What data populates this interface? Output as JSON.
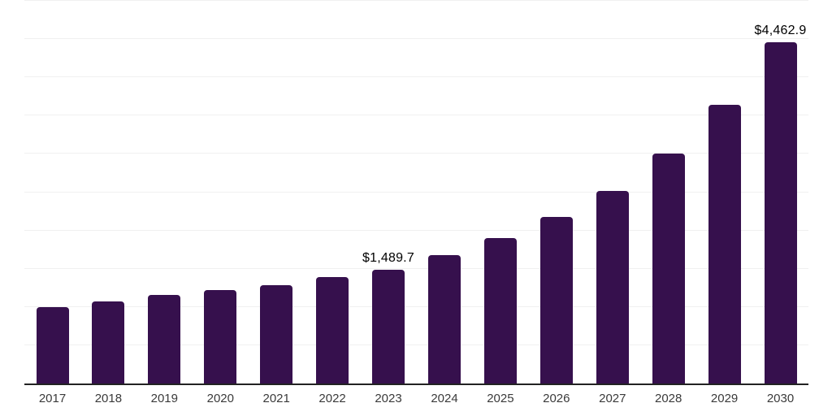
{
  "chart_data": {
    "type": "bar",
    "title": "",
    "xlabel": "",
    "ylabel": "",
    "categories": [
      "2017",
      "2018",
      "2019",
      "2020",
      "2021",
      "2022",
      "2023",
      "2024",
      "2025",
      "2026",
      "2027",
      "2028",
      "2029",
      "2030"
    ],
    "values": [
      1000,
      1070,
      1155,
      1220,
      1290,
      1390,
      1489.7,
      1675,
      1900,
      2175,
      2520,
      3000,
      3640,
      4462.9
    ],
    "labeled_points": [
      {
        "category": "2023",
        "index": 6,
        "label": "$1,489.7"
      },
      {
        "category": "2030",
        "index": 13,
        "label": "$4,462.9"
      }
    ],
    "ylim": [
      0,
      5000
    ],
    "gridline_step": 500,
    "grid": "horizontal",
    "legend_position": "none",
    "y_axis_tick_labels_visible": false
  },
  "colors": {
    "bar": "#36104D",
    "gridline": "#f0f0f0",
    "axis": "#222222",
    "value_label": "#000000",
    "tick_label": "#3a3a3a",
    "background": "#ffffff"
  }
}
